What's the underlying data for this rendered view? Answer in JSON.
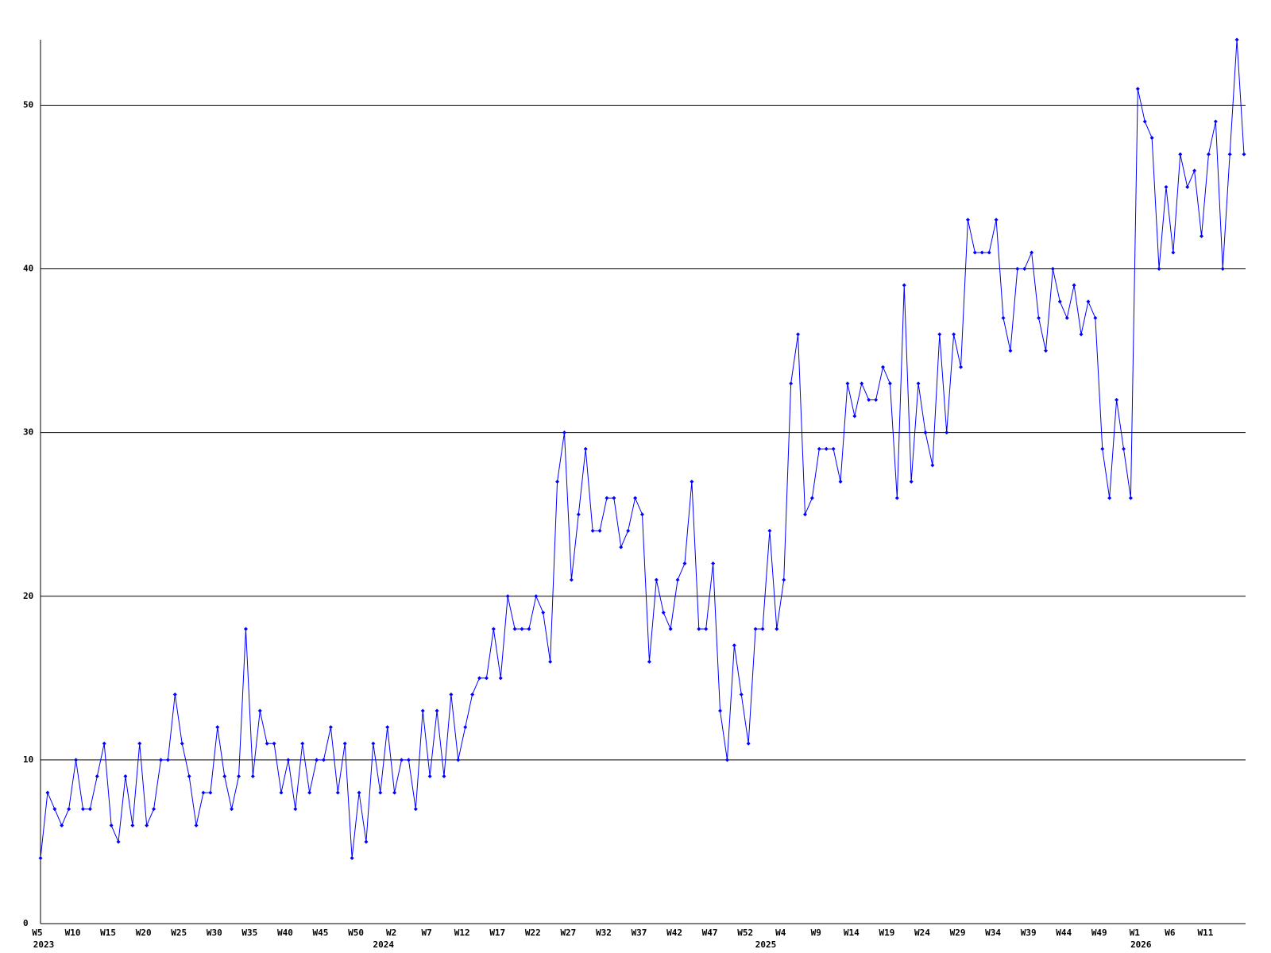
{
  "chart_data": {
    "type": "line",
    "categories": [
      "W5",
      null,
      null,
      null,
      null,
      "W10",
      null,
      null,
      null,
      null,
      "W15",
      null,
      null,
      null,
      null,
      "W20",
      null,
      null,
      null,
      null,
      "W25",
      null,
      null,
      null,
      null,
      "W30",
      null,
      null,
      null,
      null,
      "W35",
      null,
      null,
      null,
      null,
      "W40",
      null,
      null,
      null,
      null,
      "W45",
      null,
      null,
      null,
      null,
      "W50",
      null,
      null,
      null,
      null,
      "W2",
      null,
      null,
      null,
      null,
      "W7",
      null,
      null,
      null,
      null,
      "W12",
      null,
      null,
      null,
      null,
      "W17",
      null,
      null,
      null,
      null,
      "W22",
      null,
      null,
      null,
      null,
      "W27",
      null,
      null,
      null,
      null,
      "W32",
      null,
      null,
      null,
      null,
      "W37",
      null,
      null,
      null,
      null,
      "W42",
      null,
      null,
      null,
      null,
      "W47",
      null,
      null,
      null,
      null,
      "W52",
      null,
      null,
      null,
      null,
      "W4",
      null,
      null,
      null,
      null,
      "W9",
      null,
      null,
      null,
      null,
      "W14",
      null,
      null,
      null,
      null,
      "W19",
      null,
      null,
      null,
      null,
      "W24",
      null,
      null,
      null,
      null,
      "W29",
      null,
      null,
      null,
      null,
      "W34",
      null,
      null,
      null,
      null,
      "W39",
      null,
      null,
      null,
      null,
      "W44",
      null,
      null,
      null,
      null,
      "W49",
      null,
      null,
      null,
      null,
      "W1",
      null,
      null,
      null,
      null,
      "W6",
      null,
      null,
      null,
      null,
      "W11",
      null,
      null,
      null,
      null,
      null
    ],
    "category_years": [
      "2023",
      null,
      null,
      null,
      null,
      null,
      null,
      null,
      null,
      null,
      null,
      null,
      null,
      null,
      null,
      null,
      null,
      null,
      null,
      null,
      null,
      null,
      null,
      null,
      null,
      null,
      null,
      null,
      null,
      null,
      null,
      null,
      null,
      null,
      null,
      null,
      null,
      null,
      null,
      null,
      null,
      null,
      null,
      null,
      null,
      null,
      null,
      null,
      "2024",
      null,
      null,
      null,
      null,
      null,
      null,
      null,
      null,
      null,
      null,
      null,
      null,
      null,
      null,
      null,
      null,
      null,
      null,
      null,
      null,
      null,
      null,
      null,
      null,
      null,
      null,
      null,
      null,
      null,
      null,
      null,
      null,
      null,
      null,
      null,
      null,
      null,
      null,
      null,
      null,
      null,
      null,
      null,
      null,
      null,
      null,
      null,
      null,
      null,
      null,
      null,
      null,
      null,
      "2025",
      null,
      null,
      null,
      null,
      null,
      null,
      null,
      null,
      null,
      null,
      null,
      null,
      null,
      null,
      null,
      null,
      null,
      null,
      null,
      null,
      null,
      null,
      null,
      null,
      null,
      null,
      null,
      null,
      null,
      null,
      null,
      null,
      null,
      null,
      null,
      null,
      null,
      null,
      null,
      null,
      null,
      null,
      null,
      null,
      null,
      null,
      null,
      null,
      null,
      null,
      null,
      null,
      "2026",
      null,
      null,
      null,
      null,
      null,
      null,
      null,
      null,
      null,
      null,
      null,
      null,
      null,
      null,
      null
    ],
    "series": [
      {
        "color": "#0000ff",
        "values": [
          4,
          8,
          7,
          6,
          7,
          10,
          7,
          7,
          9,
          11,
          6,
          5,
          9,
          6,
          11,
          6,
          7,
          10,
          10,
          14,
          11,
          9,
          6,
          8,
          8,
          12,
          9,
          7,
          9,
          18,
          9,
          13,
          11,
          11,
          8,
          10,
          7,
          11,
          8,
          10,
          10,
          12,
          8,
          11,
          4,
          8,
          5,
          11,
          8,
          12,
          8,
          10,
          10,
          7,
          13,
          9,
          13,
          9,
          14,
          10,
          12,
          14,
          15,
          15,
          18,
          15,
          20,
          18,
          18,
          18,
          20,
          19,
          16,
          27,
          30,
          21,
          25,
          29,
          24,
          24,
          26,
          26,
          23,
          24,
          26,
          25,
          16,
          21,
          19,
          18,
          21,
          22,
          27,
          18,
          18,
          22,
          13,
          10,
          17,
          14,
          11,
          18,
          18,
          24,
          18,
          21,
          33,
          36,
          25,
          26,
          29,
          29,
          29,
          27,
          33,
          31,
          33,
          32,
          32,
          34,
          33,
          26,
          39,
          27,
          33,
          30,
          28,
          36,
          30,
          36,
          34,
          43,
          41,
          41,
          41,
          43,
          37,
          35,
          40,
          40,
          41,
          37,
          35,
          40,
          38,
          37,
          39,
          36,
          38,
          37,
          29,
          26,
          32,
          29,
          26,
          51,
          49,
          48,
          40,
          45,
          41,
          47,
          45,
          46,
          42,
          47,
          49,
          40,
          47,
          54,
          47
        ]
      }
    ],
    "ylim": [
      0,
      54
    ],
    "yticks": [
      0,
      10,
      20,
      30,
      40,
      50
    ],
    "grid": true
  }
}
